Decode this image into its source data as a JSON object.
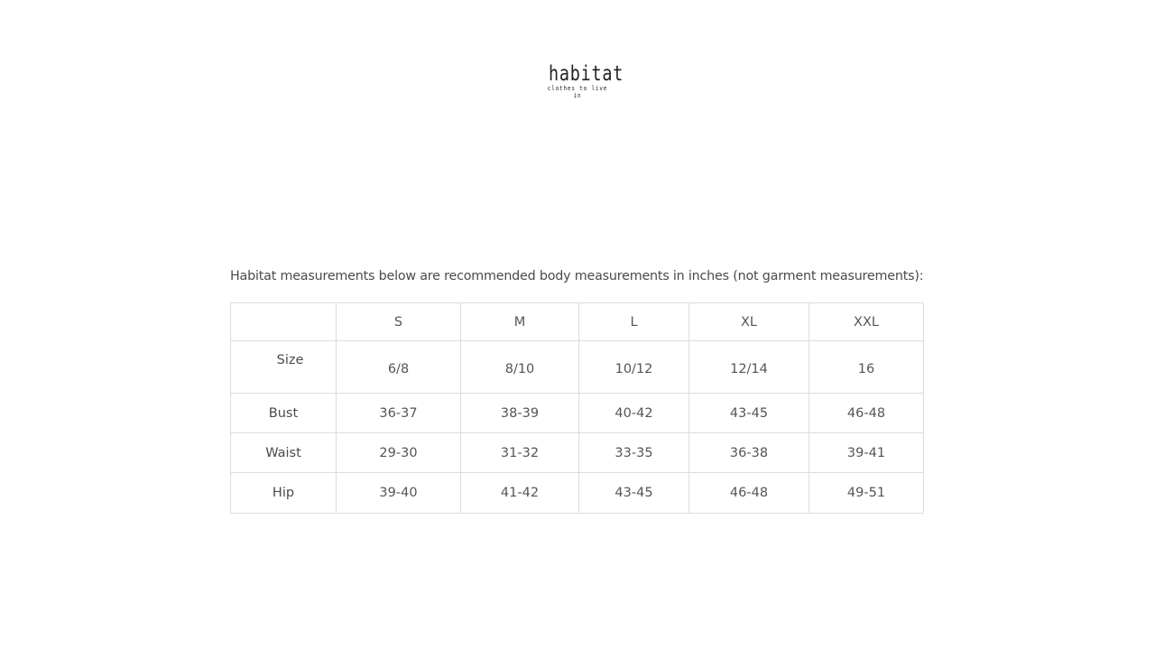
{
  "logo": {
    "name": "habitat",
    "tagline": "clothes to live in"
  },
  "intro": "Habitat measurements below are recommended body measurements in inches (not garment measurements):",
  "table": {
    "headers": [
      "",
      "S",
      "M",
      "L",
      "XL",
      "XXL"
    ],
    "rows": [
      {
        "label": "Size",
        "values": [
          "6/8",
          "8/10",
          "10/12",
          "12/14",
          "16"
        ]
      },
      {
        "label": "Bust",
        "values": [
          "36-37",
          "38-39",
          "40-42",
          "43-45",
          "46-48"
        ]
      },
      {
        "label": "Waist",
        "values": [
          "29-30",
          "31-32",
          "33-35",
          "36-38",
          "39-41"
        ]
      },
      {
        "label": "Hip",
        "values": [
          "39-40",
          "41-42",
          "43-45",
          "46-48",
          "49-51"
        ]
      }
    ]
  }
}
